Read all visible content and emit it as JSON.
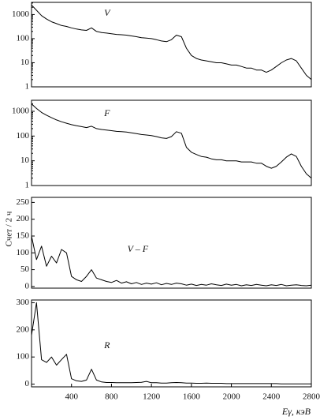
{
  "chart_data": [
    {
      "type": "line",
      "label": "V",
      "log_y": true,
      "color": "#000000",
      "x": [
        0,
        50,
        100,
        150,
        200,
        250,
        300,
        350,
        400,
        450,
        500,
        550,
        600,
        650,
        700,
        750,
        800,
        850,
        900,
        950,
        1000,
        1050,
        1100,
        1150,
        1200,
        1250,
        1300,
        1350,
        1400,
        1450,
        1500,
        1550,
        1600,
        1650,
        1700,
        1750,
        1800,
        1850,
        1900,
        1950,
        2000,
        2050,
        2100,
        2150,
        2200,
        2250,
        2300,
        2350,
        2400,
        2450,
        2500,
        2550,
        2600,
        2650,
        2700,
        2750,
        2800
      ],
      "values": [
        2500,
        1500,
        900,
        650,
        500,
        420,
        350,
        320,
        280,
        250,
        230,
        220,
        280,
        200,
        180,
        170,
        160,
        150,
        145,
        140,
        130,
        120,
        110,
        105,
        100,
        90,
        80,
        75,
        90,
        140,
        120,
        40,
        20,
        15,
        13,
        12,
        11,
        10,
        10,
        9,
        8,
        8,
        7,
        6,
        6,
        5,
        5,
        4,
        5,
        7,
        10,
        13,
        15,
        12,
        6,
        3,
        2
      ],
      "xlim": [
        0,
        2800
      ],
      "ylim": [
        1,
        3200
      ],
      "yticks": [
        1,
        10,
        100,
        1000
      ]
    },
    {
      "type": "line",
      "label": "F",
      "log_y": true,
      "color": "#000000",
      "x": [
        0,
        50,
        100,
        150,
        200,
        250,
        300,
        350,
        400,
        450,
        500,
        550,
        600,
        650,
        700,
        750,
        800,
        850,
        900,
        950,
        1000,
        1050,
        1100,
        1150,
        1200,
        1250,
        1300,
        1350,
        1400,
        1450,
        1500,
        1550,
        1600,
        1650,
        1700,
        1750,
        1800,
        1850,
        1900,
        1950,
        2000,
        2050,
        2100,
        2150,
        2200,
        2250,
        2300,
        2350,
        2400,
        2450,
        2500,
        2550,
        2600,
        2650,
        2700,
        2750,
        2800
      ],
      "values": [
        2000,
        1300,
        900,
        700,
        550,
        450,
        380,
        330,
        290,
        260,
        240,
        220,
        250,
        200,
        185,
        175,
        165,
        155,
        150,
        145,
        135,
        125,
        115,
        110,
        105,
        95,
        85,
        80,
        95,
        150,
        130,
        35,
        22,
        18,
        15,
        14,
        12,
        11,
        11,
        10,
        10,
        10,
        9,
        9,
        9,
        8,
        8,
        6,
        5,
        6,
        9,
        14,
        19,
        15,
        6,
        3,
        2
      ],
      "xlim": [
        0,
        2800
      ],
      "ylim": [
        1,
        2800
      ],
      "yticks": [
        1,
        10,
        100,
        1000
      ]
    },
    {
      "type": "line",
      "label": "V – F",
      "ylabel": "Счет / 2 ч",
      "color": "#000000",
      "x": [
        0,
        50,
        100,
        150,
        200,
        250,
        300,
        350,
        400,
        450,
        500,
        550,
        600,
        650,
        700,
        750,
        800,
        850,
        900,
        950,
        1000,
        1050,
        1100,
        1150,
        1200,
        1250,
        1300,
        1350,
        1400,
        1450,
        1500,
        1550,
        1600,
        1650,
        1700,
        1750,
        1800,
        1850,
        1900,
        1950,
        2000,
        2050,
        2100,
        2150,
        2200,
        2250,
        2300,
        2350,
        2400,
        2450,
        2500,
        2550,
        2600,
        2650,
        2700,
        2750,
        2800
      ],
      "values": [
        150,
        80,
        120,
        60,
        90,
        70,
        110,
        100,
        30,
        20,
        15,
        30,
        50,
        25,
        20,
        15,
        12,
        18,
        10,
        14,
        8,
        12,
        6,
        10,
        7,
        11,
        5,
        9,
        6,
        10,
        8,
        4,
        7,
        3,
        6,
        4,
        8,
        5,
        3,
        7,
        4,
        6,
        2,
        5,
        3,
        6,
        4,
        2,
        5,
        3,
        6,
        2,
        4,
        5,
        3,
        2,
        4
      ],
      "xlim": [
        0,
        2800
      ],
      "ylim": [
        -5,
        265
      ],
      "yticks": [
        0,
        50,
        100,
        150,
        200,
        250
      ]
    },
    {
      "type": "line",
      "label": "R",
      "xlabel": "Eγ, кэВ",
      "color": "#000000",
      "x": [
        0,
        50,
        100,
        150,
        200,
        250,
        300,
        350,
        400,
        450,
        500,
        550,
        600,
        650,
        700,
        750,
        800,
        850,
        900,
        950,
        1000,
        1050,
        1100,
        1150,
        1200,
        1250,
        1300,
        1350,
        1400,
        1450,
        1500,
        1550,
        1600,
        1650,
        1700,
        1750,
        1800,
        1850,
        1900,
        1950,
        2000,
        2050,
        2100,
        2150,
        2200,
        2250,
        2300,
        2350,
        2400,
        2450,
        2500,
        2550,
        2600,
        2650,
        2700,
        2750,
        2800
      ],
      "values": [
        180,
        300,
        90,
        80,
        100,
        70,
        90,
        110,
        20,
        12,
        10,
        15,
        55,
        15,
        8,
        6,
        6,
        5,
        5,
        5,
        5,
        6,
        7,
        10,
        5,
        5,
        4,
        4,
        5,
        6,
        5,
        4,
        4,
        3,
        3,
        4,
        3,
        3,
        3,
        2,
        2,
        2,
        2,
        2,
        2,
        2,
        2,
        2,
        2,
        2,
        1,
        1,
        1,
        1,
        1,
        1,
        1
      ],
      "xlim": [
        0,
        2800
      ],
      "ylim": [
        -10,
        310
      ],
      "yticks": [
        0,
        100,
        200,
        300
      ],
      "xticks": [
        400,
        800,
        1200,
        1600,
        2000,
        2400,
        2800
      ]
    }
  ]
}
